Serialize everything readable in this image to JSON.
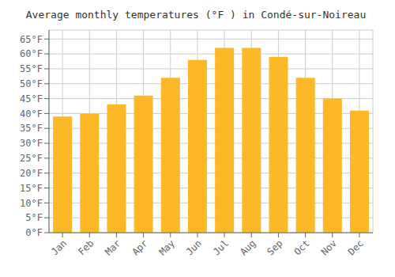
{
  "chart_data": {
    "type": "bar",
    "title": "Average monthly temperatures (°F ) in Condé-sur-Noireau",
    "categories": [
      "Jan",
      "Feb",
      "Mar",
      "Apr",
      "May",
      "Jun",
      "Jul",
      "Aug",
      "Sep",
      "Oct",
      "Nov",
      "Dec"
    ],
    "values": [
      39,
      40,
      43,
      46,
      52,
      58,
      62,
      62,
      59,
      52,
      45,
      41
    ],
    "color": "#FDB827",
    "ylim": [
      0,
      68
    ],
    "yticks": [
      {
        "value": 0,
        "label": "0°F"
      },
      {
        "value": 5,
        "label": "5°F"
      },
      {
        "value": 10,
        "label": "10°F"
      },
      {
        "value": 15,
        "label": "15°F"
      },
      {
        "value": 20,
        "label": "20°F"
      },
      {
        "value": 25,
        "label": "25°F"
      },
      {
        "value": 30,
        "label": "30°F"
      },
      {
        "value": 35,
        "label": "35°F"
      },
      {
        "value": 40,
        "label": "40°F"
      },
      {
        "value": 45,
        "label": "45°F"
      },
      {
        "value": 50,
        "label": "50°F"
      },
      {
        "value": 55,
        "label": "55°F"
      },
      {
        "value": 60,
        "label": "60°F"
      },
      {
        "value": 65,
        "label": "65°F"
      }
    ],
    "grid": true
  }
}
